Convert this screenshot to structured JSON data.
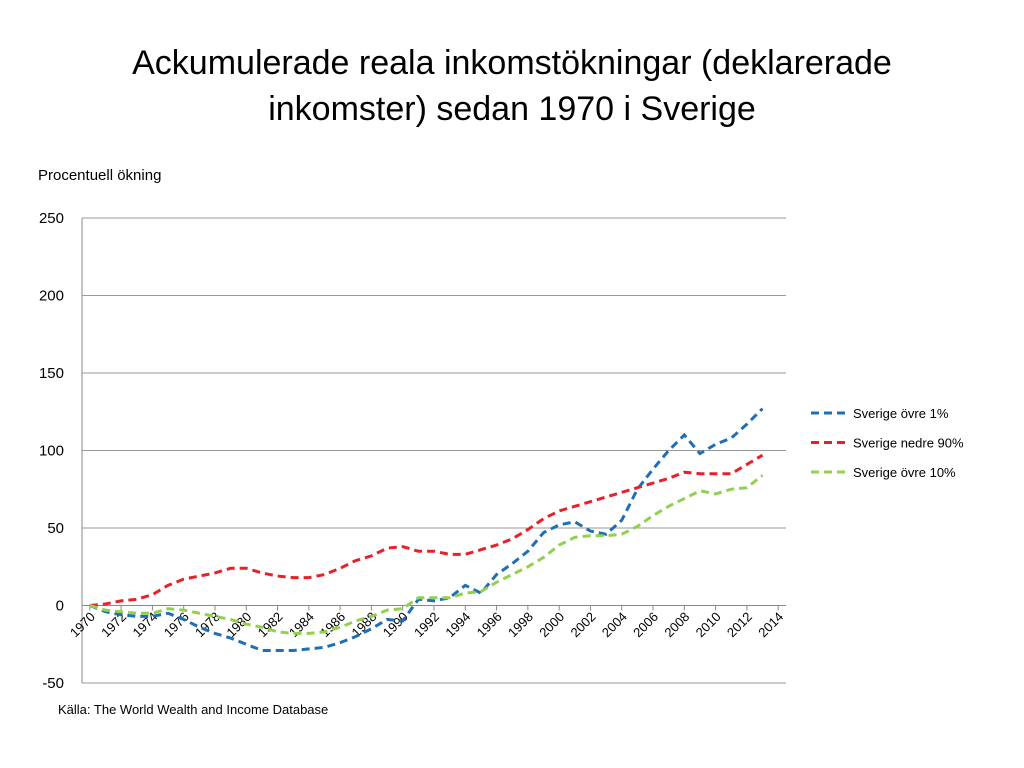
{
  "chart_data": {
    "type": "line",
    "title": "Ackumulerade reala inkomstökningar (deklarerade\ninkomster) sedan 1970 i Sverige",
    "y_label": "Procentuell ökning",
    "source": "Källa: The World Wealth and Income Database",
    "x": [
      1970,
      1971,
      1972,
      1973,
      1974,
      1975,
      1976,
      1977,
      1978,
      1979,
      1980,
      1981,
      1982,
      1983,
      1984,
      1985,
      1986,
      1987,
      1988,
      1989,
      1990,
      1991,
      1992,
      1993,
      1994,
      1995,
      1996,
      1997,
      1998,
      1999,
      2000,
      2001,
      2002,
      2003,
      2004,
      2005,
      2006,
      2007,
      2008,
      2009,
      2010,
      2011,
      2012,
      2013
    ],
    "series": [
      {
        "name": "Sverige övre 1%",
        "color": "#1f6fb5",
        "values": [
          0,
          -4,
          -6,
          -7,
          -7,
          -5,
          -9,
          -14,
          -18,
          -21,
          -25,
          -29,
          -29,
          -29,
          -28,
          -27,
          -24,
          -20,
          -15,
          -9,
          -10,
          4,
          3,
          5,
          13,
          8,
          20,
          27,
          35,
          47,
          52,
          54,
          48,
          46,
          55,
          75,
          88,
          100,
          110,
          98,
          104,
          108,
          117,
          127
        ]
      },
      {
        "name": "Sverige nedre 90%",
        "color": "#e8202a",
        "values": [
          0,
          1,
          3,
          4,
          7,
          13,
          17,
          19,
          21,
          24,
          24,
          21,
          19,
          18,
          18,
          20,
          24,
          29,
          32,
          37,
          38,
          35,
          35,
          33,
          33,
          36,
          39,
          43,
          49,
          56,
          61,
          64,
          67,
          70,
          73,
          76,
          79,
          82,
          86,
          85,
          85,
          85,
          91,
          97
        ]
      },
      {
        "name": "Sverige övre 10%",
        "color": "#92d050",
        "values": [
          0,
          -3,
          -4,
          -5,
          -5,
          -2,
          -3,
          -5,
          -7,
          -9,
          -12,
          -14,
          -17,
          -18,
          -18,
          -17,
          -14,
          -10,
          -7,
          -3,
          -2,
          5,
          5,
          5,
          8,
          9,
          15,
          20,
          25,
          31,
          39,
          44,
          45,
          45,
          46,
          51,
          58,
          64,
          69,
          74,
          72,
          75,
          76,
          84
        ]
      }
    ],
    "xlim": [
      1969.5,
      2014.5
    ],
    "xticks": [
      1970,
      1972,
      1974,
      1976,
      1978,
      1980,
      1982,
      1984,
      1986,
      1988,
      1990,
      1992,
      1994,
      1996,
      1998,
      2000,
      2002,
      2004,
      2006,
      2008,
      2010,
      2012,
      2014
    ],
    "ylim": [
      -50,
      250
    ],
    "yticks": [
      -50,
      0,
      50,
      100,
      150,
      200,
      250
    ],
    "grid": true,
    "legend": "right"
  }
}
